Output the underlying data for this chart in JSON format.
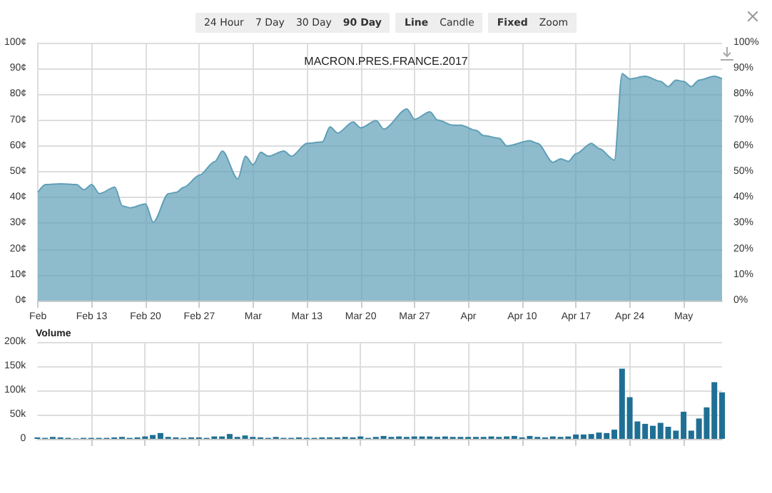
{
  "chart_data": [
    {
      "type": "area",
      "title": "MACRON.PRES.FRANCE.2017",
      "color": "#5f9fb8",
      "grid": true,
      "marker": "none",
      "annotations": [
        "24 Hour",
        "7 Day",
        "30 Day",
        "90 Day",
        "Line",
        "Candle",
        "Fixed",
        "Zoom"
      ],
      "x": [
        "2017-02-06",
        "2017-02-07",
        "2017-02-09",
        "2017-02-11",
        "2017-02-12",
        "2017-02-13",
        "2017-02-14",
        "2017-02-16",
        "2017-02-17",
        "2017-02-18",
        "2017-02-20",
        "2017-02-21",
        "2017-02-23",
        "2017-02-24",
        "2017-02-25",
        "2017-02-27",
        "2017-03-01",
        "2017-03-02",
        "2017-03-04",
        "2017-03-05",
        "2017-03-06",
        "2017-03-07",
        "2017-03-08",
        "2017-03-10",
        "2017-03-11",
        "2017-03-13",
        "2017-03-15",
        "2017-03-16",
        "2017-03-17",
        "2017-03-19",
        "2017-03-20",
        "2017-03-22",
        "2017-03-23",
        "2017-03-26",
        "2017-03-27",
        "2017-03-29",
        "2017-03-30",
        "2017-04-01",
        "2017-04-02",
        "2017-04-04",
        "2017-04-05",
        "2017-04-07",
        "2017-04-08",
        "2017-04-11",
        "2017-04-12",
        "2017-04-14",
        "2017-04-15",
        "2017-04-16",
        "2017-04-17",
        "2017-04-19",
        "2017-04-20",
        "2017-04-22",
        "2017-04-23",
        "2017-04-24",
        "2017-04-26",
        "2017-04-28",
        "2017-04-29",
        "2017-04-30",
        "2017-05-01",
        "2017-05-02",
        "2017-05-03",
        "2017-05-05",
        "2017-05-06"
      ],
      "values": [
        42,
        45,
        45.3,
        45,
        43,
        45,
        41.5,
        44,
        36.7,
        36,
        37.5,
        30.4,
        41.5,
        42,
        44,
        48.6,
        53.9,
        58,
        47.2,
        56,
        52.7,
        57.5,
        56,
        58,
        56,
        61,
        61.5,
        67.4,
        65,
        69.3,
        67,
        69.8,
        66.5,
        74.3,
        70.3,
        73.2,
        70,
        68,
        68,
        66,
        64,
        63,
        60,
        62,
        61,
        53.6,
        55,
        54,
        57,
        61,
        59,
        54.5,
        88,
        86,
        87,
        85,
        83,
        85.5,
        85,
        83,
        85.5,
        87,
        86
      ],
      "xlim": [
        "2017-02-06",
        "2017-05-06"
      ],
      "xticks": [
        {
          "value": "2017-02-06",
          "label": "Feb"
        },
        {
          "value": "2017-02-13",
          "label": "Feb 13"
        },
        {
          "value": "2017-02-20",
          "label": "Feb 20"
        },
        {
          "value": "2017-02-27",
          "label": "Feb 27"
        },
        {
          "value": "2017-03-06",
          "label": "Mar"
        },
        {
          "value": "2017-03-13",
          "label": "Mar 13"
        },
        {
          "value": "2017-03-20",
          "label": "Mar 20"
        },
        {
          "value": "2017-03-27",
          "label": "Mar 27"
        },
        {
          "value": "2017-04-03",
          "label": "Apr"
        },
        {
          "value": "2017-04-10",
          "label": "Apr 10"
        },
        {
          "value": "2017-04-17",
          "label": "Apr 17"
        },
        {
          "value": "2017-04-24",
          "label": "Apr 24"
        },
        {
          "value": "2017-05-01",
          "label": "May"
        }
      ],
      "ylim": [
        0,
        100
      ],
      "yticks": [
        {
          "value": 0,
          "label": "0¢"
        },
        {
          "value": 10,
          "label": "10¢"
        },
        {
          "value": 20,
          "label": "20¢"
        },
        {
          "value": 30,
          "label": "30¢"
        },
        {
          "value": 40,
          "label": "40¢"
        },
        {
          "value": 50,
          "label": "50¢"
        },
        {
          "value": 60,
          "label": "60¢"
        },
        {
          "value": 70,
          "label": "70¢"
        },
        {
          "value": 80,
          "label": "80¢"
        },
        {
          "value": 90,
          "label": "90¢"
        },
        {
          "value": 100,
          "label": "100¢"
        }
      ],
      "y2lim": [
        0,
        100
      ],
      "y2ticks": [
        {
          "value": 0,
          "label": "0%"
        },
        {
          "value": 10,
          "label": "10%"
        },
        {
          "value": 20,
          "label": "20%"
        },
        {
          "value": 30,
          "label": "30%"
        },
        {
          "value": 40,
          "label": "40%"
        },
        {
          "value": 50,
          "label": "50%"
        },
        {
          "value": 60,
          "label": "60%"
        },
        {
          "value": 70,
          "label": "70%"
        },
        {
          "value": 80,
          "label": "80%"
        },
        {
          "value": 90,
          "label": "90%"
        },
        {
          "value": 100,
          "label": "100%"
        }
      ]
    },
    {
      "type": "bar",
      "title": "Volume",
      "color": "#1f6f94",
      "grid": true,
      "tick_labels": "y",
      "xlim": [
        "2017-02-06",
        "2017-05-06"
      ],
      "xticks": [
        "2017-02-13",
        "2017-02-20",
        "2017-02-27",
        "2017-03-06",
        "2017-03-13",
        "2017-03-20",
        "2017-03-27",
        "2017-04-03",
        "2017-04-10",
        "2017-04-17",
        "2017-04-24",
        "2017-05-01"
      ],
      "x": [
        "2017-02-06",
        "2017-02-07",
        "2017-02-08",
        "2017-02-09",
        "2017-02-10",
        "2017-02-11",
        "2017-02-12",
        "2017-02-13",
        "2017-02-14",
        "2017-02-15",
        "2017-02-16",
        "2017-02-17",
        "2017-02-18",
        "2017-02-19",
        "2017-02-20",
        "2017-02-21",
        "2017-02-22",
        "2017-02-23",
        "2017-02-24",
        "2017-02-25",
        "2017-02-26",
        "2017-02-27",
        "2017-02-28",
        "2017-03-01",
        "2017-03-02",
        "2017-03-03",
        "2017-03-04",
        "2017-03-05",
        "2017-03-06",
        "2017-03-07",
        "2017-03-08",
        "2017-03-09",
        "2017-03-10",
        "2017-03-11",
        "2017-03-12",
        "2017-03-13",
        "2017-03-14",
        "2017-03-15",
        "2017-03-16",
        "2017-03-17",
        "2017-03-18",
        "2017-03-19",
        "2017-03-20",
        "2017-03-21",
        "2017-03-22",
        "2017-03-23",
        "2017-03-24",
        "2017-03-25",
        "2017-03-26",
        "2017-03-27",
        "2017-03-28",
        "2017-03-29",
        "2017-03-30",
        "2017-03-31",
        "2017-04-01",
        "2017-04-02",
        "2017-04-03",
        "2017-04-04",
        "2017-04-05",
        "2017-04-06",
        "2017-04-07",
        "2017-04-08",
        "2017-04-09",
        "2017-04-10",
        "2017-04-11",
        "2017-04-12",
        "2017-04-13",
        "2017-04-14",
        "2017-04-15",
        "2017-04-16",
        "2017-04-17",
        "2017-04-18",
        "2017-04-19",
        "2017-04-20",
        "2017-04-21",
        "2017-04-22",
        "2017-04-23",
        "2017-04-24",
        "2017-04-25",
        "2017-04-26",
        "2017-04-27",
        "2017-04-28",
        "2017-04-29",
        "2017-04-30",
        "2017-05-01",
        "2017-05-02",
        "2017-05-03",
        "2017-05-04",
        "2017-05-05",
        "2017-05-06"
      ],
      "values": [
        3000,
        2000,
        4000,
        3000,
        2000,
        1000,
        2000,
        2000,
        2000,
        2000,
        3000,
        4000,
        2000,
        3000,
        5000,
        8000,
        12000,
        4000,
        3000,
        2000,
        3000,
        3000,
        2000,
        5000,
        5000,
        10000,
        4000,
        7000,
        4000,
        3000,
        2000,
        4000,
        2000,
        2000,
        3000,
        2000,
        2000,
        3000,
        3000,
        3000,
        4000,
        3000,
        5000,
        2000,
        4000,
        6000,
        4000,
        5000,
        4000,
        5000,
        5000,
        5000,
        4000,
        5000,
        4000,
        4000,
        4000,
        4000,
        4000,
        5000,
        4000,
        5000,
        6000,
        3000,
        6000,
        4000,
        3000,
        5000,
        4000,
        5000,
        9000,
        9000,
        10000,
        13000,
        12000,
        19000,
        145000,
        86000,
        36000,
        31000,
        27000,
        33000,
        25000,
        17000,
        56000,
        17000,
        42000,
        65000,
        117000,
        96000
      ],
      "ylim": [
        0,
        200000
      ],
      "yticks": [
        {
          "value": 0,
          "label": "0"
        },
        {
          "value": 50000,
          "label": "50k"
        },
        {
          "value": 100000,
          "label": "100k"
        },
        {
          "value": 150000,
          "label": "150k"
        },
        {
          "value": 200000,
          "label": "200k"
        }
      ]
    }
  ]
}
